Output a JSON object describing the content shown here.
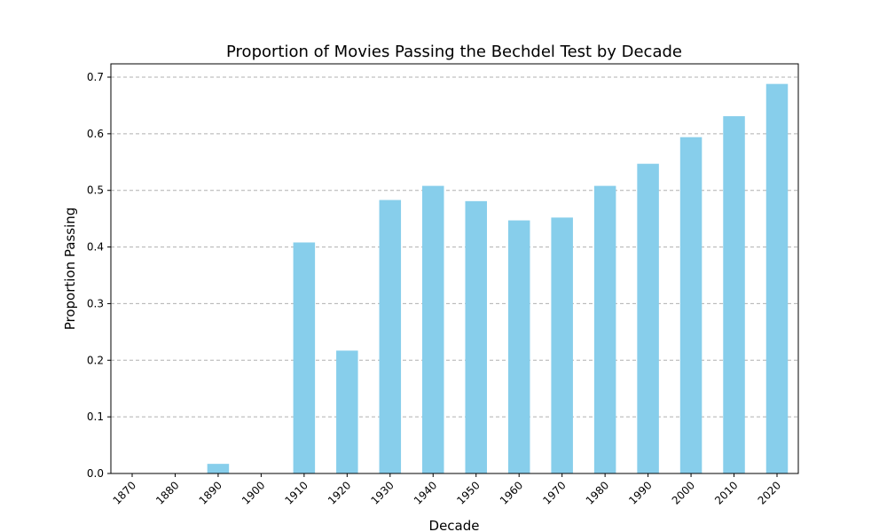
{
  "chart_data": {
    "type": "bar",
    "title": "Proportion of Movies Passing the Bechdel Test by Decade",
    "xlabel": "Decade",
    "ylabel": "Proportion Passing",
    "categories": [
      "1870",
      "1880",
      "1890",
      "1900",
      "1910",
      "1920",
      "1930",
      "1940",
      "1950",
      "1960",
      "1970",
      "1980",
      "1990",
      "2000",
      "2010",
      "2020"
    ],
    "values": [
      0.0,
      0.0,
      0.017,
      0.0,
      0.408,
      0.217,
      0.483,
      0.508,
      0.481,
      0.447,
      0.452,
      0.508,
      0.547,
      0.594,
      0.631,
      0.688
    ],
    "ylim": [
      0,
      0.7
    ],
    "yticks": [
      "0.0",
      "0.1",
      "0.2",
      "0.3",
      "0.4",
      "0.5",
      "0.6",
      "0.7"
    ],
    "grid": "y-axis dashed",
    "bar_color": "#87CEEB"
  }
}
